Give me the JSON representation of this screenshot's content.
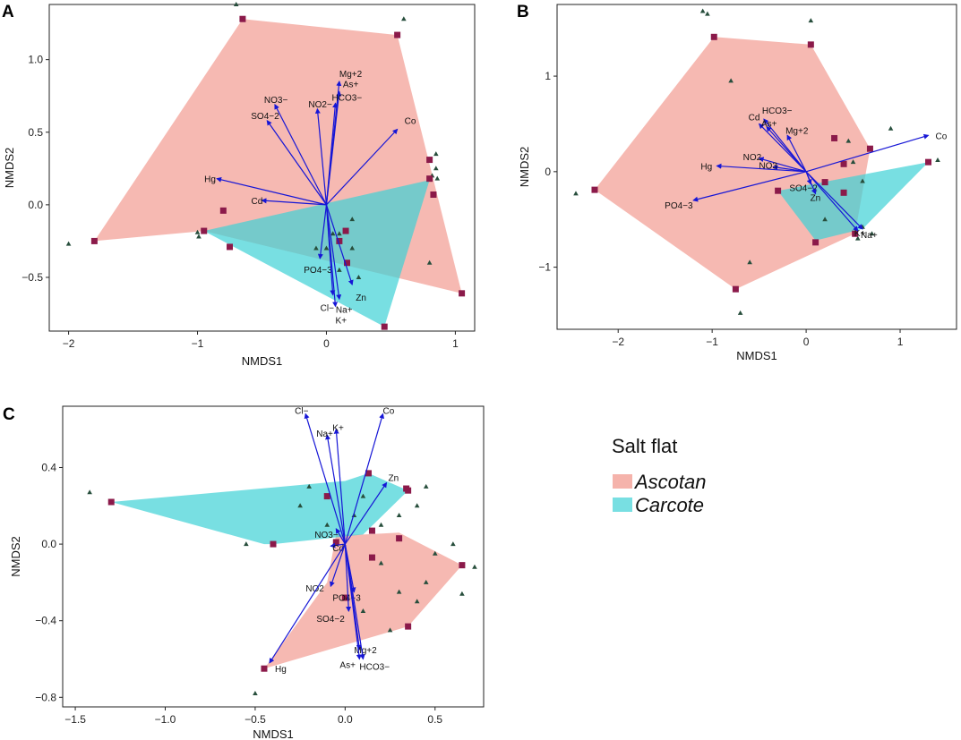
{
  "colors": {
    "ascotan_fill": "#F08A7E",
    "carcote_fill": "#3FD1D6",
    "vector": "#1616D6",
    "site_marker": "#8B1A4A",
    "point_marker": "#274E3C"
  },
  "legend": {
    "title": "Salt flat",
    "items": [
      {
        "label": "Ascotan",
        "color": "#F08A7E"
      },
      {
        "label": "Carcote",
        "color": "#3FD1D6"
      }
    ]
  },
  "chart_data": [
    {
      "panel": "A",
      "type": "scatter",
      "xlabel": "NMDS1",
      "ylabel": "NMDS2",
      "xlim": [
        -2.15,
        1.15
      ],
      "ylim": [
        -0.87,
        1.38
      ],
      "xticks": [
        -2,
        -1,
        0,
        1
      ],
      "xtick_labels": [
        "−2",
        "−1",
        "0",
        "1"
      ],
      "yticks": [
        -0.5,
        0.0,
        0.5,
        1.0
      ],
      "ytick_labels": [
        "−0.5",
        "0.0",
        "0.5",
        "1.0"
      ],
      "hulls": [
        {
          "group": "Ascotan",
          "points": [
            [
              -1.8,
              -0.25
            ],
            [
              -0.65,
              1.28
            ],
            [
              0.55,
              1.17
            ],
            [
              1.05,
              -0.61
            ],
            [
              -0.95,
              -0.18
            ]
          ]
        },
        {
          "group": "Carcote",
          "points": [
            [
              -0.95,
              -0.18
            ],
            [
              0.8,
              0.17
            ],
            [
              0.45,
              -0.84
            ]
          ]
        }
      ],
      "sites": [
        [
          -1.8,
          -0.25
        ],
        [
          -0.65,
          1.28
        ],
        [
          0.55,
          1.17
        ],
        [
          1.05,
          -0.61
        ],
        [
          0.45,
          -0.84
        ],
        [
          0.8,
          0.31
        ],
        [
          0.8,
          0.18
        ],
        [
          0.83,
          0.07
        ],
        [
          -0.95,
          -0.18
        ],
        [
          -0.8,
          -0.04
        ],
        [
          -0.75,
          -0.29
        ],
        [
          0.15,
          -0.18
        ],
        [
          0.1,
          -0.25
        ],
        [
          0.16,
          -0.4
        ]
      ],
      "points": [
        [
          -2.0,
          -0.27
        ],
        [
          -1.0,
          -0.19
        ],
        [
          -0.99,
          -0.22
        ],
        [
          -0.7,
          1.38
        ],
        [
          0.6,
          1.28
        ],
        [
          0.85,
          0.35
        ],
        [
          0.85,
          0.25
        ],
        [
          0.82,
          0.2
        ],
        [
          0.86,
          0.18
        ],
        [
          0.05,
          -0.2
        ],
        [
          0.2,
          -0.3
        ],
        [
          0.25,
          -0.5
        ],
        [
          0.1,
          -0.45
        ],
        [
          0.1,
          -0.2
        ],
        [
          0.0,
          -0.3
        ],
        [
          0.2,
          -0.1
        ],
        [
          0.8,
          -0.4
        ],
        [
          -0.08,
          -0.3
        ]
      ],
      "vectors": [
        {
          "label": "Mg+2",
          "x": 0.1,
          "y": 0.85,
          "dx": 0,
          "dy": -9
        },
        {
          "label": "As+",
          "x": 0.1,
          "y": 0.78,
          "dx": 4,
          "dy": -9
        },
        {
          "label": "HCO3−",
          "x": 0.07,
          "y": 0.7,
          "dx": -4,
          "dy": -7
        },
        {
          "label": "NO2−",
          "x": -0.07,
          "y": 0.66,
          "dx": -10,
          "dy": -6
        },
        {
          "label": "NO3−",
          "x": -0.4,
          "y": 0.69,
          "dx": -12,
          "dy": -6
        },
        {
          "label": "SO4−2",
          "x": -0.46,
          "y": 0.58,
          "dx": -18,
          "dy": -6
        },
        {
          "label": "Co",
          "x": 0.55,
          "y": 0.52,
          "dx": 8,
          "dy": -10
        },
        {
          "label": "Hg",
          "x": -0.85,
          "y": 0.18,
          "dx": -14,
          "dy": 0
        },
        {
          "label": "Cd",
          "x": -0.5,
          "y": 0.03,
          "dx": -12,
          "dy": 0
        },
        {
          "label": "PO4−3",
          "x": -0.05,
          "y": -0.37,
          "dx": -18,
          "dy": 12
        },
        {
          "label": "Zn",
          "x": 0.2,
          "y": -0.55,
          "dx": 4,
          "dy": 14
        },
        {
          "label": "Cl−",
          "x": 0.05,
          "y": -0.62,
          "dx": -14,
          "dy": 14
        },
        {
          "label": "Na+",
          "x": 0.1,
          "y": -0.65,
          "dx": -4,
          "dy": 11
        },
        {
          "label": "K+",
          "x": 0.07,
          "y": -0.7,
          "dx": 0,
          "dy": 15
        }
      ],
      "origin": [
        0.0,
        0.0
      ]
    },
    {
      "panel": "B",
      "type": "scatter",
      "xlabel": "NMDS1",
      "ylabel": "NMDS2",
      "xlim": [
        -2.65,
        1.6
      ],
      "ylim": [
        -1.65,
        1.75
      ],
      "xticks": [
        -2,
        -1,
        0,
        1
      ],
      "xtick_labels": [
        "−2",
        "−1",
        "0",
        "1"
      ],
      "yticks": [
        -1,
        0,
        1
      ],
      "ytick_labels": [
        "−1",
        "0",
        "1"
      ],
      "hulls": [
        {
          "group": "Ascotan",
          "points": [
            [
              -2.25,
              -0.19
            ],
            [
              -0.98,
              1.41
            ],
            [
              0.05,
              1.33
            ],
            [
              0.68,
              0.24
            ],
            [
              0.52,
              -0.65
            ],
            [
              -0.75,
              -1.23
            ]
          ]
        },
        {
          "group": "Carcote",
          "points": [
            [
              -0.3,
              -0.2
            ],
            [
              1.3,
              0.1
            ],
            [
              0.6,
              -0.6
            ],
            [
              0.1,
              -0.72
            ]
          ]
        }
      ],
      "sites": [
        [
          -2.25,
          -0.19
        ],
        [
          -0.98,
          1.41
        ],
        [
          0.05,
          1.33
        ],
        [
          0.68,
          0.24
        ],
        [
          0.52,
          -0.65
        ],
        [
          -0.75,
          -1.23
        ],
        [
          1.3,
          0.1
        ],
        [
          0.3,
          0.35
        ],
        [
          0.4,
          0.08
        ],
        [
          0.2,
          -0.11
        ],
        [
          -0.3,
          -0.2
        ],
        [
          0.4,
          -0.22
        ],
        [
          0.1,
          -0.74
        ]
      ],
      "points": [
        [
          -2.45,
          -0.23
        ],
        [
          -1.1,
          1.68
        ],
        [
          -1.05,
          1.65
        ],
        [
          0.05,
          1.58
        ],
        [
          -0.8,
          0.95
        ],
        [
          0.9,
          0.45
        ],
        [
          1.4,
          0.12
        ],
        [
          0.5,
          0.1
        ],
        [
          0.6,
          -0.1
        ],
        [
          0.2,
          -0.5
        ],
        [
          -0.6,
          -0.95
        ],
        [
          -0.7,
          -1.48
        ],
        [
          0.45,
          0.32
        ],
        [
          0.7,
          -0.65
        ],
        [
          0.55,
          -0.7
        ],
        [
          0.6,
          -0.58
        ]
      ],
      "vectors": [
        {
          "label": "HCO3−",
          "x": -0.45,
          "y": 0.55,
          "dx": -2,
          "dy": -10
        },
        {
          "label": "Cd",
          "x": -0.5,
          "y": 0.5,
          "dx": -12,
          "dy": -8
        },
        {
          "label": "As+",
          "x": -0.42,
          "y": 0.47,
          "dx": -6,
          "dy": -4
        },
        {
          "label": "Mg+2",
          "x": -0.2,
          "y": 0.38,
          "dx": -2,
          "dy": -6
        },
        {
          "label": "NO2",
          "x": -0.5,
          "y": 0.14,
          "dx": -18,
          "dy": -2
        },
        {
          "label": "NO3",
          "x": -0.35,
          "y": 0.05,
          "dx": -16,
          "dy": -2
        },
        {
          "label": "Hg",
          "x": -0.95,
          "y": 0.06,
          "dx": -18,
          "dy": 0
        },
        {
          "label": "PO4−3",
          "x": -1.2,
          "y": -0.3,
          "dx": -32,
          "dy": 5
        },
        {
          "label": "SO4−2",
          "x": 0.05,
          "y": -0.13,
          "dx": -24,
          "dy": 4
        },
        {
          "label": "Zn",
          "x": 0.1,
          "y": -0.23,
          "dx": -6,
          "dy": 4
        },
        {
          "label": "Co",
          "x": 1.3,
          "y": 0.38,
          "dx": 8,
          "dy": 0
        },
        {
          "label": "K+",
          "x": 0.55,
          "y": -0.62,
          "dx": -4,
          "dy": 2
        },
        {
          "label": "Na+",
          "x": 0.6,
          "y": -0.6,
          "dx": -2,
          "dy": 6
        }
      ],
      "origin": [
        0.0,
        0.0
      ]
    },
    {
      "panel": "C",
      "type": "scatter",
      "xlabel": "NMDS1",
      "ylabel": "NMDS2",
      "xlim": [
        -1.57,
        0.77
      ],
      "ylim": [
        -0.85,
        0.72
      ],
      "xticks": [
        -1.5,
        -1.0,
        -0.5,
        0.0,
        0.5
      ],
      "xtick_labels": [
        "−1.5",
        "−1.0",
        "−0.5",
        "0.0",
        "0.5"
      ],
      "yticks": [
        -0.8,
        -0.4,
        0.0,
        0.4
      ],
      "ytick_labels": [
        "−0.8",
        "−0.4",
        "0.0",
        "0.4"
      ],
      "hulls": [
        {
          "group": "Ascotan",
          "points": [
            [
              -0.45,
              -0.65
            ],
            [
              -0.1,
              -0.2
            ],
            [
              -0.05,
              0.05
            ],
            [
              0.1,
              0.05
            ],
            [
              0.3,
              0.06
            ],
            [
              0.65,
              -0.11
            ],
            [
              0.35,
              -0.43
            ]
          ]
        },
        {
          "group": "Carcote",
          "points": [
            [
              -1.3,
              0.22
            ],
            [
              0.0,
              0.33
            ],
            [
              0.13,
              0.37
            ],
            [
              0.35,
              0.28
            ],
            [
              0.1,
              0.05
            ],
            [
              -0.4,
              0.0
            ],
            [
              -0.45,
              0.0
            ]
          ]
        }
      ],
      "sites": [
        [
          -1.3,
          0.22
        ],
        [
          -0.4,
          0.0
        ],
        [
          -0.45,
          -0.65
        ],
        [
          0.13,
          0.37
        ],
        [
          0.34,
          0.29
        ],
        [
          0.35,
          0.28
        ],
        [
          0.65,
          -0.11
        ],
        [
          0.35,
          -0.43
        ],
        [
          0.3,
          0.03
        ],
        [
          0.15,
          -0.07
        ],
        [
          0.0,
          -0.28
        ],
        [
          -0.05,
          0.01
        ],
        [
          0.15,
          0.07
        ],
        [
          -0.1,
          0.25
        ]
      ],
      "points": [
        [
          -1.42,
          0.27
        ],
        [
          -0.5,
          -0.78
        ],
        [
          -0.55,
          0.0
        ],
        [
          0.72,
          -0.12
        ],
        [
          0.65,
          -0.26
        ],
        [
          0.45,
          0.3
        ],
        [
          0.4,
          0.2
        ],
        [
          0.3,
          0.15
        ],
        [
          0.2,
          0.1
        ],
        [
          0.1,
          0.25
        ],
        [
          0.05,
          0.15
        ],
        [
          -0.1,
          0.1
        ],
        [
          -0.25,
          0.2
        ],
        [
          0.5,
          -0.05
        ],
        [
          0.45,
          -0.2
        ],
        [
          0.4,
          -0.3
        ],
        [
          0.2,
          -0.1
        ],
        [
          0.1,
          -0.35
        ],
        [
          0.25,
          -0.45
        ],
        [
          -0.2,
          0.3
        ],
        [
          0.6,
          0.0
        ],
        [
          0.3,
          -0.25
        ]
      ],
      "vectors": [
        {
          "label": "Cl−",
          "x": -0.22,
          "y": 0.68,
          "dx": -12,
          "dy": -4
        },
        {
          "label": "Na+",
          "x": -0.1,
          "y": 0.57,
          "dx": -12,
          "dy": -2
        },
        {
          "label": "K+",
          "x": -0.05,
          "y": 0.6,
          "dx": -4,
          "dy": -2
        },
        {
          "label": "Co",
          "x": 0.21,
          "y": 0.68,
          "dx": 0,
          "dy": -4
        },
        {
          "label": "Zn",
          "x": 0.23,
          "y": 0.32,
          "dx": 2,
          "dy": -6
        },
        {
          "label": "NO3−",
          "x": -0.05,
          "y": 0.08,
          "dx": -24,
          "dy": 6
        },
        {
          "label": "Cd",
          "x": -0.08,
          "y": -0.01,
          "dx": 2,
          "dy": 2
        },
        {
          "label": "NO2",
          "x": -0.08,
          "y": -0.22,
          "dx": -28,
          "dy": 2
        },
        {
          "label": "PO4−3",
          "x": 0.05,
          "y": -0.25,
          "dx": -24,
          "dy": 6
        },
        {
          "label": "SO4−2",
          "x": 0.02,
          "y": -0.35,
          "dx": -36,
          "dy": 8
        },
        {
          "label": "Mg+2",
          "x": 0.08,
          "y": -0.55,
          "dx": -6,
          "dy": 0
        },
        {
          "label": "As+",
          "x": 0.08,
          "y": -0.6,
          "dx": -22,
          "dy": 6
        },
        {
          "label": "HCO3−",
          "x": 0.1,
          "y": -0.6,
          "dx": -4,
          "dy": 8
        },
        {
          "label": "Hg",
          "x": -0.42,
          "y": -0.62,
          "dx": 6,
          "dy": 6
        }
      ],
      "origin": [
        0.0,
        0.0
      ]
    }
  ]
}
